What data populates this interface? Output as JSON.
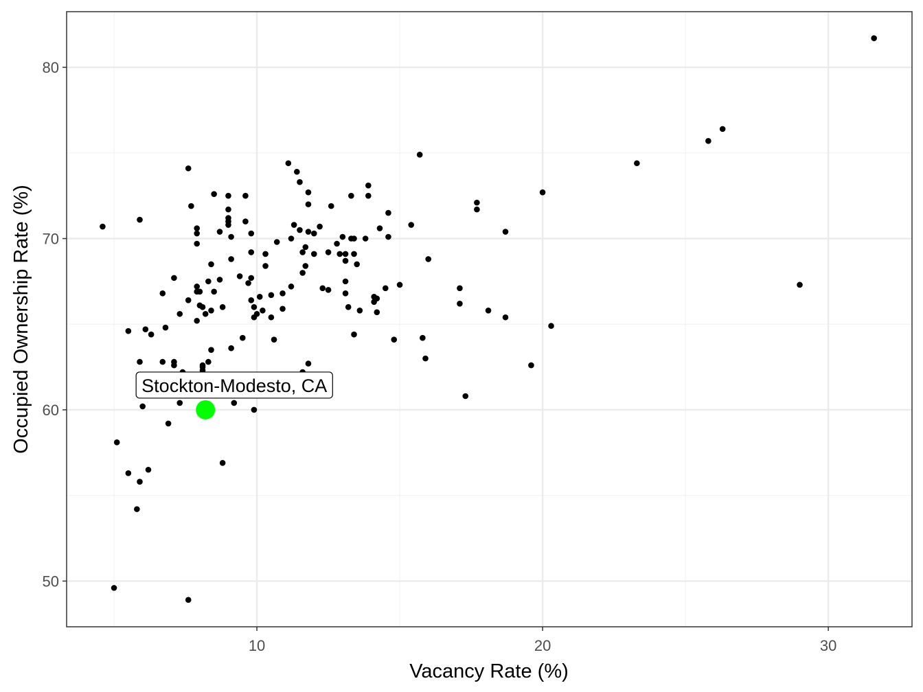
{
  "chart_data": {
    "type": "scatter",
    "xlabel": "Vacancy Rate (%)",
    "ylabel": "Occupied Ownership Rate (%)",
    "xlim": [
      3.34,
      32.93
    ],
    "ylim": [
      47.33,
      83.25
    ],
    "xticks": [
      10,
      20,
      30
    ],
    "yticks": [
      50,
      60,
      70,
      80
    ],
    "x_minor": [
      5,
      15,
      25
    ],
    "y_minor": [
      55,
      65,
      75
    ],
    "grid": true,
    "point_color": "#000000",
    "highlight": {
      "label": "Stockton-Modesto, CA",
      "x": 8.2,
      "y": 60.0,
      "color": "#00ff00"
    },
    "points": [
      [
        4.6,
        70.7
      ],
      [
        5.0,
        49.6
      ],
      [
        5.1,
        58.1
      ],
      [
        5.5,
        64.6
      ],
      [
        5.5,
        56.3
      ],
      [
        5.8,
        54.2
      ],
      [
        5.9,
        55.8
      ],
      [
        5.9,
        71.1
      ],
      [
        5.9,
        62.8
      ],
      [
        6.0,
        60.2
      ],
      [
        6.1,
        64.7
      ],
      [
        6.2,
        56.5
      ],
      [
        6.3,
        64.4
      ],
      [
        6.7,
        66.8
      ],
      [
        6.7,
        62.8
      ],
      [
        6.8,
        64.8
      ],
      [
        6.9,
        59.2
      ],
      [
        7.1,
        62.8
      ],
      [
        7.1,
        62.6
      ],
      [
        7.1,
        67.7
      ],
      [
        7.3,
        65.6
      ],
      [
        7.3,
        60.4
      ],
      [
        7.4,
        62.2
      ],
      [
        7.6,
        74.1
      ],
      [
        7.6,
        66.4
      ],
      [
        7.6,
        48.9
      ],
      [
        7.7,
        71.9
      ],
      [
        7.9,
        70.3
      ],
      [
        7.9,
        67.2
      ],
      [
        7.9,
        69.7
      ],
      [
        7.9,
        70.6
      ],
      [
        7.9,
        66.9
      ],
      [
        7.9,
        65.2
      ],
      [
        8.0,
        66.9
      ],
      [
        8.0,
        66.1
      ],
      [
        8.1,
        62.5
      ],
      [
        8.1,
        62.6
      ],
      [
        8.1,
        66.0
      ],
      [
        8.2,
        65.6
      ],
      [
        8.3,
        67.5
      ],
      [
        8.3,
        62.8
      ],
      [
        8.4,
        68.5
      ],
      [
        8.4,
        63.5
      ],
      [
        8.4,
        65.8
      ],
      [
        8.5,
        66.9
      ],
      [
        8.5,
        72.6
      ],
      [
        8.7,
        70.4
      ],
      [
        8.7,
        67.6
      ],
      [
        8.8,
        66.0
      ],
      [
        8.8,
        56.9
      ],
      [
        9.0,
        71.7
      ],
      [
        9.0,
        71.0
      ],
      [
        9.0,
        72.5
      ],
      [
        9.0,
        71.2
      ],
      [
        9.0,
        70.8
      ],
      [
        9.1,
        63.6
      ],
      [
        9.1,
        68.8
      ],
      [
        9.1,
        70.1
      ],
      [
        9.2,
        60.4
      ],
      [
        9.4,
        67.8
      ],
      [
        9.5,
        64.2
      ],
      [
        9.6,
        72.5
      ],
      [
        9.6,
        71.0
      ],
      [
        9.7,
        67.4
      ],
      [
        9.8,
        70.3
      ],
      [
        9.8,
        69.2
      ],
      [
        9.8,
        66.4
      ],
      [
        9.8,
        67.7
      ],
      [
        9.9,
        65.4
      ],
      [
        9.9,
        60.0
      ],
      [
        9.9,
        66.0
      ],
      [
        10.0,
        65.6
      ],
      [
        10.1,
        66.6
      ],
      [
        10.2,
        65.8
      ],
      [
        10.3,
        68.4
      ],
      [
        10.3,
        69.1
      ],
      [
        10.5,
        65.4
      ],
      [
        10.5,
        66.7
      ],
      [
        10.6,
        64.1
      ],
      [
        10.7,
        69.8
      ],
      [
        10.9,
        65.9
      ],
      [
        10.9,
        66.8
      ],
      [
        11.1,
        74.4
      ],
      [
        11.2,
        70.0
      ],
      [
        11.2,
        67.2
      ],
      [
        11.3,
        70.8
      ],
      [
        11.4,
        73.9
      ],
      [
        11.5,
        73.3
      ],
      [
        11.5,
        70.5
      ],
      [
        11.6,
        68.0
      ],
      [
        11.6,
        69.2
      ],
      [
        11.7,
        69.5
      ],
      [
        11.7,
        68.4
      ],
      [
        11.8,
        72.7
      ],
      [
        11.8,
        72.0
      ],
      [
        11.8,
        70.4
      ],
      [
        11.8,
        62.7
      ],
      [
        12.0,
        69.1
      ],
      [
        12.0,
        70.3
      ],
      [
        12.2,
        70.7
      ],
      [
        12.3,
        67.1
      ],
      [
        12.5,
        69.2
      ],
      [
        12.5,
        67.0
      ],
      [
        12.6,
        71.9
      ],
      [
        12.8,
        69.7
      ],
      [
        12.9,
        69.1
      ],
      [
        13.0,
        70.1
      ],
      [
        13.1,
        66.8
      ],
      [
        13.1,
        69.1
      ],
      [
        13.1,
        67.5
      ],
      [
        13.1,
        68.7
      ],
      [
        13.2,
        66.0
      ],
      [
        13.3,
        72.5
      ],
      [
        13.3,
        70.0
      ],
      [
        13.4,
        64.4
      ],
      [
        13.4,
        70.0
      ],
      [
        13.4,
        69.1
      ],
      [
        13.5,
        68.5
      ],
      [
        13.6,
        65.8
      ],
      [
        13.8,
        70.0
      ],
      [
        13.9,
        73.1
      ],
      [
        13.9,
        72.5
      ],
      [
        14.1,
        66.3
      ],
      [
        14.1,
        66.6
      ],
      [
        14.2,
        66.5
      ],
      [
        14.2,
        65.7
      ],
      [
        14.3,
        70.6
      ],
      [
        14.5,
        67.1
      ],
      [
        14.6,
        71.5
      ],
      [
        14.6,
        70.1
      ],
      [
        14.8,
        64.1
      ],
      [
        15.0,
        67.3
      ],
      [
        15.4,
        70.8
      ],
      [
        15.7,
        74.9
      ],
      [
        15.8,
        64.2
      ],
      [
        15.9,
        63.0
      ],
      [
        16.0,
        68.8
      ],
      [
        17.1,
        67.1
      ],
      [
        17.1,
        66.2
      ],
      [
        17.3,
        60.8
      ],
      [
        17.7,
        72.1
      ],
      [
        17.7,
        71.7
      ],
      [
        18.1,
        65.8
      ],
      [
        18.7,
        65.4
      ],
      [
        18.7,
        70.4
      ],
      [
        19.6,
        62.6
      ],
      [
        20.0,
        72.7
      ],
      [
        20.3,
        64.9
      ],
      [
        23.3,
        74.4
      ],
      [
        25.8,
        75.7
      ],
      [
        26.3,
        76.4
      ],
      [
        29.0,
        67.3
      ],
      [
        31.6,
        81.7
      ],
      [
        8.1,
        62.3
      ],
      [
        11.6,
        62.2
      ]
    ]
  }
}
